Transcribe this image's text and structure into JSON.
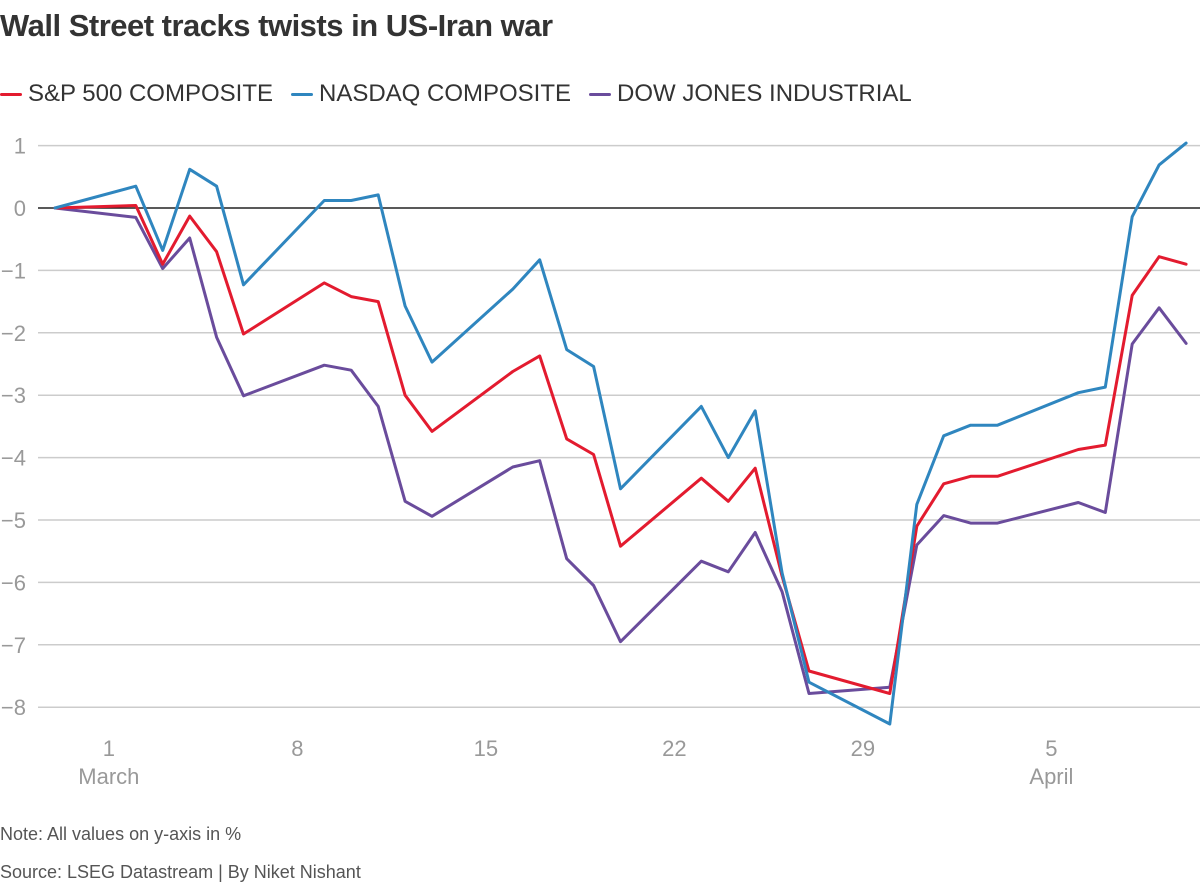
{
  "title": "Wall Street tracks twists in US-Iran war",
  "note": "Note: All values on y-axis in %",
  "source": "Source: LSEG Datastream | By Niket Nishant",
  "chart_data": {
    "type": "line",
    "title": "Wall Street tracks twists in US-Iran war",
    "xlabel": "",
    "ylabel": "",
    "ylim": [
      -8.4,
      1.1
    ],
    "yticks": [
      1,
      0,
      -1,
      -2,
      -3,
      -4,
      -5,
      -6,
      -7,
      -8
    ],
    "ytick_labels": [
      "1",
      "0",
      "−1",
      "−2",
      "−3",
      "−4",
      "−5",
      "−6",
      "−7",
      "−8"
    ],
    "xticks": [
      {
        "date": "2026-03-01",
        "label": "1",
        "month": "March"
      },
      {
        "date": "2026-03-08",
        "label": "8",
        "month": ""
      },
      {
        "date": "2026-03-15",
        "label": "15",
        "month": ""
      },
      {
        "date": "2026-03-22",
        "label": "22",
        "month": ""
      },
      {
        "date": "2026-03-29",
        "label": "29",
        "month": ""
      },
      {
        "date": "2026-04-05",
        "label": "5",
        "month": "April"
      }
    ],
    "grid": true,
    "legend_position": "top-left",
    "x": [
      "2026-02-27",
      "2026-03-02",
      "2026-03-03",
      "2026-03-04",
      "2026-03-05",
      "2026-03-06",
      "2026-03-09",
      "2026-03-10",
      "2026-03-11",
      "2026-03-12",
      "2026-03-13",
      "2026-03-16",
      "2026-03-17",
      "2026-03-18",
      "2026-03-19",
      "2026-03-20",
      "2026-03-23",
      "2026-03-24",
      "2026-03-25",
      "2026-03-26",
      "2026-03-27",
      "2026-03-30",
      "2026-03-31",
      "2026-04-01",
      "2026-04-02",
      "2026-04-03",
      "2026-04-06",
      "2026-04-07",
      "2026-04-08",
      "2026-04-09",
      "2026-04-10"
    ],
    "series": [
      {
        "name": "S&P 500 COMPOSITE",
        "color": "#e31b2f",
        "values": [
          0,
          0.04,
          -0.9,
          -0.13,
          -0.7,
          -2.02,
          -1.2,
          -1.42,
          -1.5,
          -3.0,
          -3.58,
          -2.62,
          -2.37,
          -3.7,
          -3.95,
          -5.42,
          -4.33,
          -4.7,
          -4.17,
          -5.9,
          -7.42,
          -7.78,
          -5.1,
          -4.42,
          -4.3,
          -4.3,
          -3.87,
          -3.8,
          -1.4,
          -0.78,
          -0.9
        ]
      },
      {
        "name": "NASDAQ COMPOSITE",
        "color": "#2f86bf",
        "values": [
          0,
          0.35,
          -0.68,
          0.62,
          0.35,
          -1.23,
          0.12,
          0.12,
          0.21,
          -1.57,
          -2.47,
          -1.3,
          -0.83,
          -2.27,
          -2.54,
          -4.5,
          -3.18,
          -4.0,
          -3.25,
          -5.85,
          -7.6,
          -8.27,
          -4.75,
          -3.65,
          -3.48,
          -3.48,
          -2.96,
          -2.87,
          -0.14,
          0.69,
          1.04
        ]
      },
      {
        "name": "DOW JONES INDUSTRIAL",
        "color": "#6a4c9c",
        "values": [
          0,
          -0.15,
          -0.97,
          -0.48,
          -2.07,
          -3.01,
          -2.52,
          -2.6,
          -3.18,
          -4.7,
          -4.94,
          -4.15,
          -4.05,
          -5.62,
          -6.05,
          -6.95,
          -5.66,
          -5.83,
          -5.2,
          -6.15,
          -7.78,
          -7.68,
          -5.4,
          -4.93,
          -5.05,
          -5.05,
          -4.72,
          -4.88,
          -2.18,
          -1.6,
          -2.17
        ]
      }
    ]
  }
}
